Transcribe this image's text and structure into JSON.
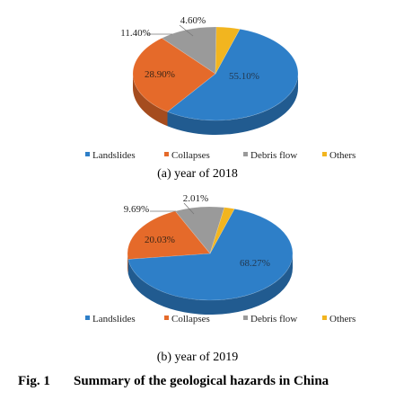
{
  "chart_data": [
    {
      "type": "pie",
      "categories": [
        "Landslides",
        "Collapses",
        "Debris flow",
        "Others"
      ],
      "values": [
        55.1,
        28.9,
        11.4,
        4.6
      ],
      "value_labels": [
        "55.10%",
        "28.90%",
        "11.40%",
        "4.60%"
      ],
      "legend": [
        "Landslides",
        "Collapses",
        "Debris flow",
        "Others"
      ],
      "legend_placement": "bottom",
      "subtitle": "(a) year of 2018"
    },
    {
      "type": "pie",
      "categories": [
        "Landslides",
        "Collapses",
        "Debris flow",
        "Others"
      ],
      "values": [
        68.27,
        20.03,
        9.69,
        2.01
      ],
      "value_labels": [
        "68.27%",
        "20.03%",
        "9.69%",
        "2.01%"
      ],
      "legend": [
        "Landslides",
        "Collapses",
        "Debris flow",
        "Others"
      ],
      "legend_placement": "bottom",
      "subtitle": "(b) year of 2019"
    }
  ],
  "colors": {
    "Landslides": "#2E7FC8",
    "Collapses": "#E56A2A",
    "Debris flow": "#9A9A9A",
    "Others": "#F2B51F"
  },
  "figure_caption": {
    "label": "Fig. 1",
    "title": "Summary of the geological hazards in China"
  }
}
